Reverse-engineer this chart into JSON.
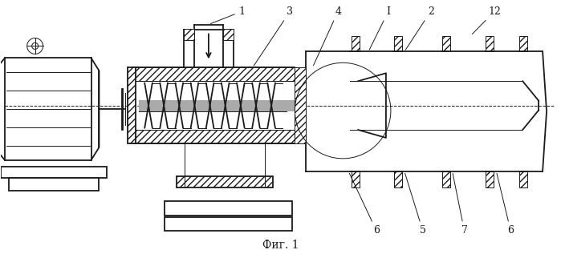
{
  "bg_color": "#ffffff",
  "line_color": "#1a1a1a",
  "caption": "Фиг. 1",
  "figsize": [
    6.99,
    3.22
  ],
  "dpi": 100,
  "xlim": [
    0,
    7.0
  ],
  "ylim": [
    0,
    3.22
  ],
  "lw_main": 1.3,
  "lw_thin": 0.7,
  "lw_thick": 2.0
}
